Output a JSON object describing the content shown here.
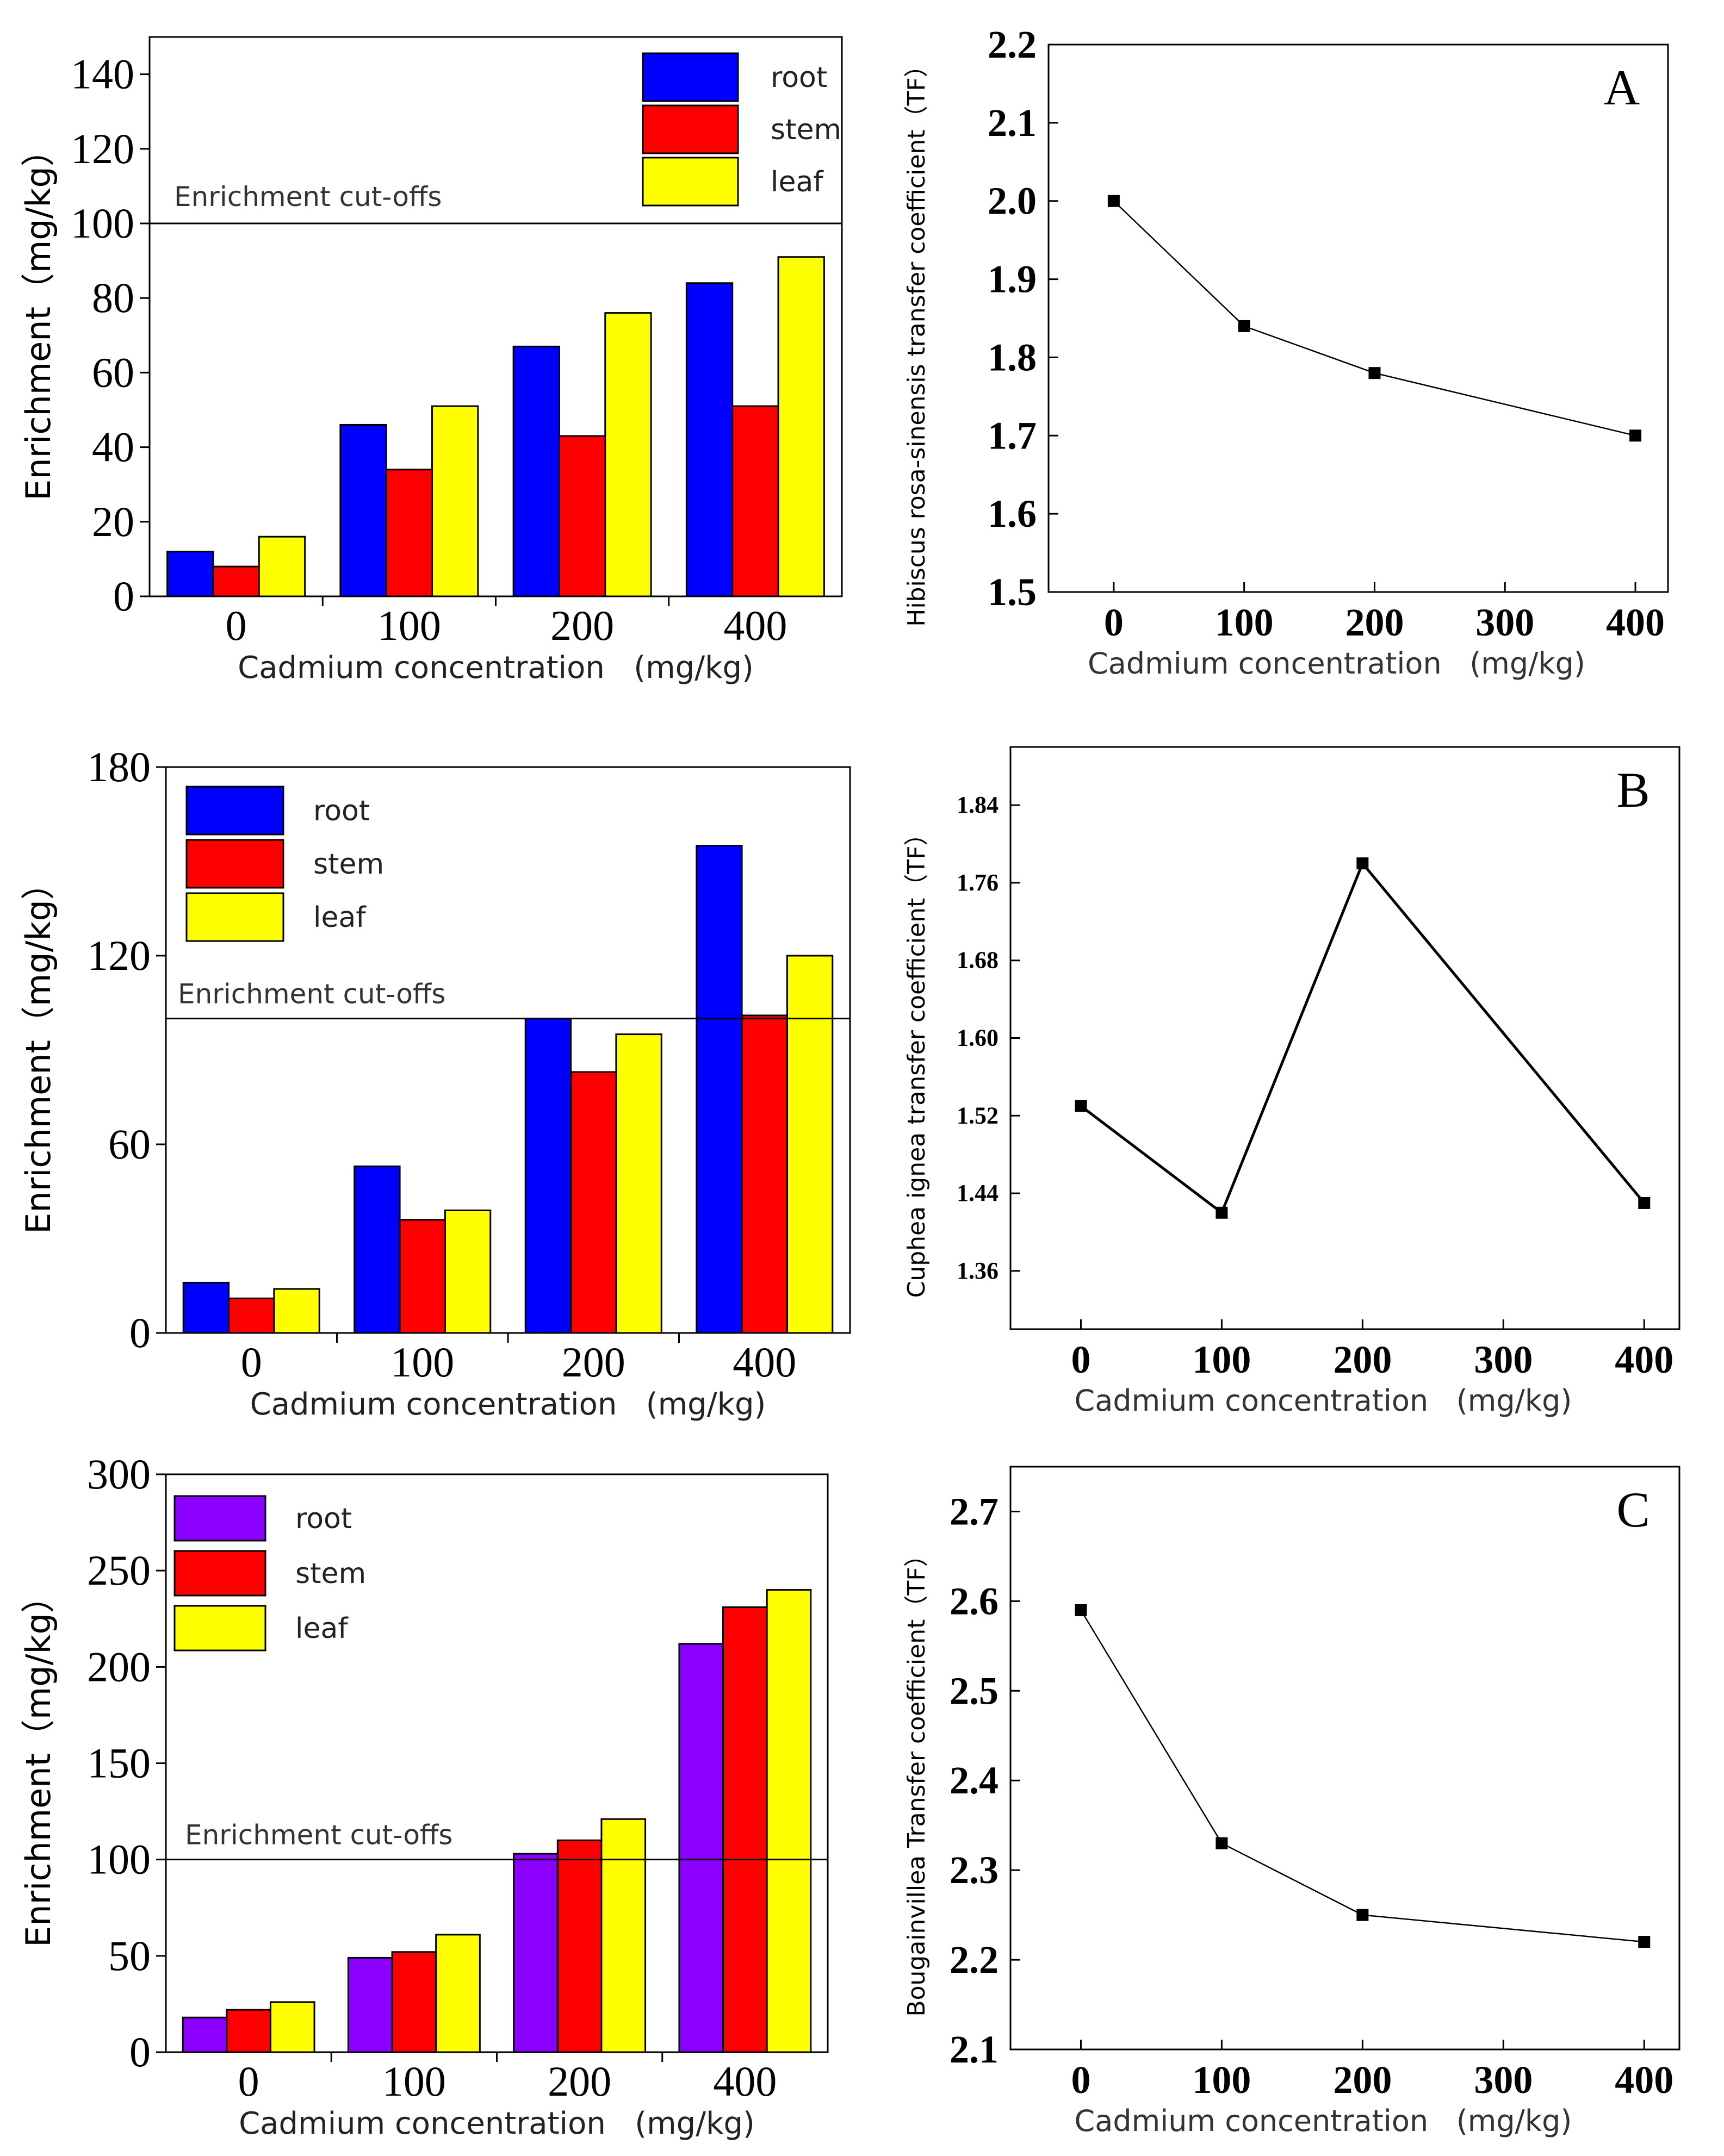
{
  "colors": {
    "root_blue": "#0000ff",
    "root_violet": "#8b00ff",
    "stem": "#ff0000",
    "leaf": "#ffff00",
    "axis": "#000000",
    "line": "#000000"
  },
  "chart_data": [
    {
      "id": "bar-a",
      "type": "bar",
      "title": "",
      "xlabel": "Cadmium concentration   (mg/kg)",
      "ylabel": "Enrichment（mg/kg）",
      "categories": [
        "0",
        "100",
        "200",
        "400"
      ],
      "series": [
        {
          "name": "root",
          "color": "#0000ff",
          "values": [
            12,
            46,
            67,
            84
          ]
        },
        {
          "name": "stem",
          "color": "#ff0000",
          "values": [
            8,
            34,
            43,
            51
          ]
        },
        {
          "name": "leaf",
          "color": "#ffff00",
          "values": [
            16,
            51,
            76,
            91
          ]
        }
      ],
      "ylim": [
        0,
        150
      ],
      "yticks": [
        0,
        20,
        40,
        60,
        80,
        100,
        120,
        140
      ],
      "ytick_labels": [
        "0",
        "20",
        "40",
        "60",
        "80",
        "100",
        "120",
        "140"
      ],
      "cutoff": {
        "value": 100,
        "label": "Enrichment cut-offs"
      },
      "legend": "top-right"
    },
    {
      "id": "line-a",
      "type": "line",
      "panel_label": "A",
      "xlabel": "Cadmium concentration   (mg/kg)",
      "ylabel": "Hibiscus rosa-sinensis transfer coefficient（TF）",
      "x": [
        0,
        100,
        200,
        400
      ],
      "y": [
        2.0,
        1.84,
        1.78,
        1.7
      ],
      "xlim": [
        -50,
        425
      ],
      "ylim": [
        1.5,
        2.2
      ],
      "xticks": [
        0,
        100,
        200,
        300,
        400
      ],
      "xtick_labels": [
        "0",
        "100",
        "200",
        "300",
        "400"
      ],
      "yticks": [
        1.5,
        1.6,
        1.7,
        1.8,
        1.9,
        2.0,
        2.1,
        2.2
      ],
      "ytick_labels": [
        "1.5",
        "1.6",
        "1.7",
        "1.8",
        "1.9",
        "2.0",
        "2.1",
        "2.2"
      ]
    },
    {
      "id": "bar-b",
      "type": "bar",
      "title": "",
      "xlabel": "Cadmium concentration   (mg/kg)",
      "ylabel": "Enrichment（mg/kg）",
      "categories": [
        "0",
        "100",
        "200",
        "400"
      ],
      "series": [
        {
          "name": "root",
          "color": "#0000ff",
          "values": [
            16,
            53,
            100,
            155
          ]
        },
        {
          "name": "stem",
          "color": "#ff0000",
          "values": [
            11,
            36,
            83,
            101
          ]
        },
        {
          "name": "leaf",
          "color": "#ffff00",
          "values": [
            14,
            39,
            95,
            120
          ]
        }
      ],
      "ylim": [
        0,
        180
      ],
      "yticks": [
        0,
        60,
        120,
        180
      ],
      "ytick_labels": [
        "0",
        "60",
        "120",
        "180"
      ],
      "cutoff": {
        "value": 100,
        "label": "Enrichment cut-offs"
      },
      "legend": "top-left"
    },
    {
      "id": "line-b",
      "type": "line",
      "panel_label": "B",
      "xlabel": "Cadmium concentration   (mg/kg)",
      "ylabel": "Cuphea ignea transfer coefficient（TF）",
      "x": [
        0,
        100,
        200,
        400
      ],
      "y": [
        1.53,
        1.42,
        1.78,
        1.43
      ],
      "xlim": [
        -50,
        425
      ],
      "ylim": [
        1.3,
        1.9
      ],
      "xticks": [
        0,
        100,
        200,
        300,
        400
      ],
      "xtick_labels": [
        "0",
        "100",
        "200",
        "300",
        "400"
      ],
      "yticks": [
        1.36,
        1.44,
        1.52,
        1.6,
        1.68,
        1.76,
        1.84
      ],
      "ytick_labels": [
        "1.36",
        "1.44",
        "1.52",
        "1.60",
        "1.68",
        "1.76",
        "1.84"
      ]
    },
    {
      "id": "bar-c",
      "type": "bar",
      "title": "",
      "xlabel": "Cadmium concentration   (mg/kg)",
      "ylabel": "Enrichment（mg/kg）",
      "categories": [
        "0",
        "100",
        "200",
        "400"
      ],
      "series": [
        {
          "name": "root",
          "color": "#8b00ff",
          "values": [
            18,
            49,
            103,
            212
          ]
        },
        {
          "name": "stem",
          "color": "#ff0000",
          "values": [
            22,
            52,
            110,
            231
          ]
        },
        {
          "name": "leaf",
          "color": "#ffff00",
          "values": [
            26,
            61,
            121,
            240
          ]
        }
      ],
      "ylim": [
        0,
        300
      ],
      "yticks": [
        0,
        50,
        100,
        150,
        200,
        250,
        300
      ],
      "ytick_labels": [
        "0",
        "50",
        "100",
        "150",
        "200",
        "250",
        "300"
      ],
      "cutoff": {
        "value": 100,
        "label": "Enrichment cut-offs"
      },
      "legend": "top-left"
    },
    {
      "id": "line-c",
      "type": "line",
      "panel_label": "C",
      "xlabel": "Cadmium concentration   (mg/kg)",
      "ylabel": "Bougainvillea Transfer coefficient（TF）",
      "x": [
        0,
        100,
        200,
        400
      ],
      "y": [
        2.59,
        2.33,
        2.25,
        2.22
      ],
      "xlim": [
        -50,
        425
      ],
      "ylim": [
        2.1,
        2.75
      ],
      "xticks": [
        0,
        100,
        200,
        300,
        400
      ],
      "xtick_labels": [
        "0",
        "100",
        "200",
        "300",
        "400"
      ],
      "yticks": [
        2.1,
        2.2,
        2.3,
        2.4,
        2.5,
        2.6,
        2.7
      ],
      "ytick_labels": [
        "2.1",
        "2.2",
        "2.3",
        "2.4",
        "2.5",
        "2.6",
        "2.7"
      ]
    }
  ]
}
